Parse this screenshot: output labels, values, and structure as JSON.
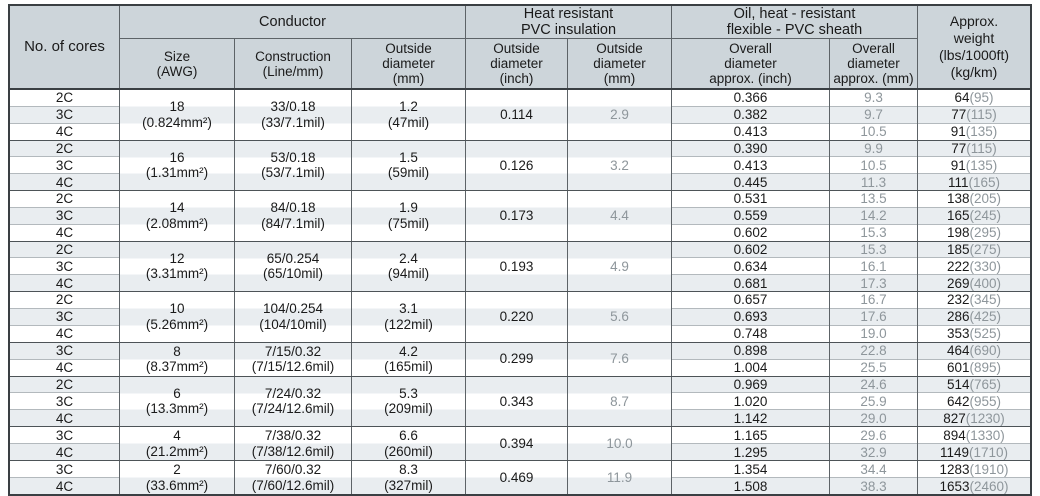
{
  "colors": {
    "header_bg": "#cdd5da",
    "row_stripe": "#e9edf0",
    "row_white": "#ffffff",
    "text_dark": "#1a1a1a",
    "text_gray": "#8e969b",
    "border_outer": "#3a3f43",
    "border_column": "#5d6367",
    "border_group": "#4d5357",
    "border_row": "#b3b9bd"
  },
  "table": {
    "header": {
      "no_of_cores": "No. of cores",
      "conductor": "Conductor",
      "heat_resistant": "Heat resistant\nPVC insulation",
      "oil_sheath": "Oil, heat - resistant\nflexible - PVC sheath",
      "approx_weight": "Approx.\nweight\n(lbs/1000ft)\n(kg/km)",
      "sub": [
        "Size\n(AWG)",
        "Construction\n(Line/mm)",
        "Outside\ndiameter\n(mm)",
        "Outside\ndiameter\n(inch)",
        "Outside\ndiameter\n(mm)",
        "Overall\ndiameter\napprox. (inch)",
        "Overall\ndiameter\napprox. (mm)"
      ]
    },
    "groups": [
      {
        "size": "18\n(0.824mm²)",
        "construction": "33/0.18\n(33/7.1mil)",
        "od_mm": "1.2\n(47mil)",
        "ins_inch": "0.114",
        "ins_mm": "2.9",
        "stripes": [
          "w",
          "g",
          "w"
        ],
        "rows": [
          {
            "cores": "2C",
            "sheath_inch": "0.366",
            "sheath_mm": "9.3",
            "lbs": "64",
            "kg": "(95)"
          },
          {
            "cores": "3C",
            "sheath_inch": "0.382",
            "sheath_mm": "9.7",
            "lbs": "77",
            "kg": "(115)"
          },
          {
            "cores": "4C",
            "sheath_inch": "0.413",
            "sheath_mm": "10.5",
            "lbs": "91",
            "kg": "(135)"
          }
        ]
      },
      {
        "size": "16\n(1.31mm²)",
        "construction": "53/0.18\n(53/7.1mil)",
        "od_mm": "1.5\n(59mil)",
        "ins_inch": "0.126",
        "ins_mm": "3.2",
        "stripes": [
          "g",
          "w",
          "g"
        ],
        "rows": [
          {
            "cores": "2C",
            "sheath_inch": "0.390",
            "sheath_mm": "9.9",
            "lbs": "77",
            "kg": "(115)"
          },
          {
            "cores": "3C",
            "sheath_inch": "0.413",
            "sheath_mm": "10.5",
            "lbs": "91",
            "kg": "(135)"
          },
          {
            "cores": "4C",
            "sheath_inch": "0.445",
            "sheath_mm": "11.3",
            "lbs": "111",
            "kg": "(165)"
          }
        ]
      },
      {
        "size": "14\n(2.08mm²)",
        "construction": "84/0.18\n(84/7.1mil)",
        "od_mm": "1.9\n(75mil)",
        "ins_inch": "0.173",
        "ins_mm": "4.4",
        "stripes": [
          "w",
          "g",
          "w"
        ],
        "rows": [
          {
            "cores": "2C",
            "sheath_inch": "0.531",
            "sheath_mm": "13.5",
            "lbs": "138",
            "kg": "(205)"
          },
          {
            "cores": "3C",
            "sheath_inch": "0.559",
            "sheath_mm": "14.2",
            "lbs": "165",
            "kg": "(245)"
          },
          {
            "cores": "4C",
            "sheath_inch": "0.602",
            "sheath_mm": "15.3",
            "lbs": "198",
            "kg": "(295)"
          }
        ]
      },
      {
        "size": "12\n(3.31mm²)",
        "construction": "65/0.254\n(65/10mil)",
        "od_mm": "2.4\n(94mil)",
        "ins_inch": "0.193",
        "ins_mm": "4.9",
        "stripes": [
          "g",
          "w",
          "g"
        ],
        "rows": [
          {
            "cores": "2C",
            "sheath_inch": "0.602",
            "sheath_mm": "15.3",
            "lbs": "185",
            "kg": "(275)"
          },
          {
            "cores": "3C",
            "sheath_inch": "0.634",
            "sheath_mm": "16.1",
            "lbs": "222",
            "kg": "(330)"
          },
          {
            "cores": "4C",
            "sheath_inch": "0.681",
            "sheath_mm": "17.3",
            "lbs": "269",
            "kg": "(400)"
          }
        ]
      },
      {
        "size": "10\n(5.26mm²)",
        "construction": "104/0.254\n(104/10mil)",
        "od_mm": "3.1\n(122mil)",
        "ins_inch": "0.220",
        "ins_mm": "5.6",
        "stripes": [
          "w",
          "g",
          "w"
        ],
        "rows": [
          {
            "cores": "2C",
            "sheath_inch": "0.657",
            "sheath_mm": "16.7",
            "lbs": "232",
            "kg": "(345)"
          },
          {
            "cores": "3C",
            "sheath_inch": "0.693",
            "sheath_mm": "17.6",
            "lbs": "286",
            "kg": "(425)"
          },
          {
            "cores": "4C",
            "sheath_inch": "0.748",
            "sheath_mm": "19.0",
            "lbs": "353",
            "kg": "(525)"
          }
        ]
      },
      {
        "size": "8\n(8.37mm²)",
        "construction": "7/15/0.32\n(7/15/12.6mil)",
        "od_mm": "4.2\n(165mil)",
        "ins_inch": "0.299",
        "ins_mm": "7.6",
        "stripes": [
          "g",
          "w"
        ],
        "rows": [
          {
            "cores": "3C",
            "sheath_inch": "0.898",
            "sheath_mm": "22.8",
            "lbs": "464",
            "kg": "(690)"
          },
          {
            "cores": "4C",
            "sheath_inch": "1.004",
            "sheath_mm": "25.5",
            "lbs": "601",
            "kg": "(895)"
          }
        ]
      },
      {
        "size": "6\n(13.3mm²)",
        "construction": "7/24/0.32\n(7/24/12.6mil)",
        "od_mm": "5.3\n(209mil)",
        "ins_inch": "0.343",
        "ins_mm": "8.7",
        "stripes": [
          "g",
          "w",
          "g"
        ],
        "rows": [
          {
            "cores": "2C",
            "sheath_inch": "0.969",
            "sheath_mm": "24.6",
            "lbs": "514",
            "kg": "(765)"
          },
          {
            "cores": "3C",
            "sheath_inch": "1.020",
            "sheath_mm": "25.9",
            "lbs": "642",
            "kg": "(955)"
          },
          {
            "cores": "4C",
            "sheath_inch": "1.142",
            "sheath_mm": "29.0",
            "lbs": "827",
            "kg": "(1230)"
          }
        ]
      },
      {
        "size": "4\n(21.2mm²)",
        "construction": "7/38/0.32\n(7/38/12.6mil)",
        "od_mm": "6.6\n(260mil)",
        "ins_inch": "0.394",
        "ins_mm": "10.0",
        "stripes": [
          "w",
          "g"
        ],
        "rows": [
          {
            "cores": "3C",
            "sheath_inch": "1.165",
            "sheath_mm": "29.6",
            "lbs": "894",
            "kg": "(1330)"
          },
          {
            "cores": "4C",
            "sheath_inch": "1.295",
            "sheath_mm": "32.9",
            "lbs": "1149",
            "kg": "(1710)"
          }
        ]
      },
      {
        "size": "2\n(33.6mm²)",
        "construction": "7/60/0.32\n(7/60/12.6mil)",
        "od_mm": "8.3\n(327mil)",
        "ins_inch": "0.469",
        "ins_mm": "11.9",
        "stripes": [
          "w",
          "g"
        ],
        "rows": [
          {
            "cores": "3C",
            "sheath_inch": "1.354",
            "sheath_mm": "34.4",
            "lbs": "1283",
            "kg": "(1910)"
          },
          {
            "cores": "4C",
            "sheath_inch": "1.508",
            "sheath_mm": "38.3",
            "lbs": "1653",
            "kg": "(2460)"
          }
        ]
      }
    ]
  }
}
